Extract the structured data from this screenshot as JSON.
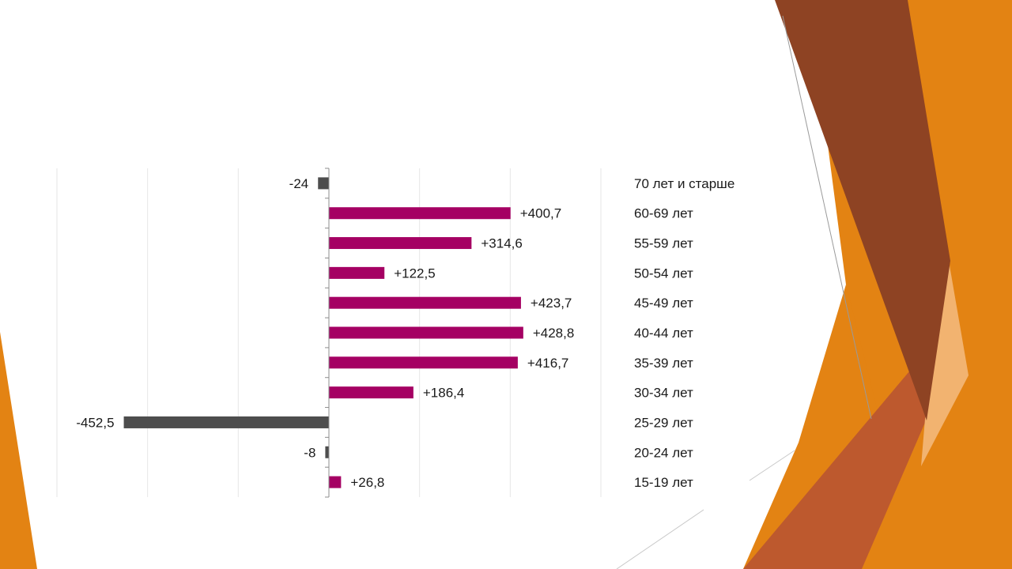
{
  "chart_data": {
    "type": "bar",
    "orientation": "horizontal",
    "categories": [
      "70 лет и старше",
      "60-69 лет",
      "55-59 лет",
      "50-54 лет",
      "45-49 лет",
      "40-44 лет",
      "35-39 лет",
      "30-34 лет",
      "25-29 лет",
      "20-24 лет",
      "15-19 лет"
    ],
    "values": [
      -24,
      400.7,
      314.6,
      122.5,
      423.7,
      428.8,
      416.7,
      186.4,
      -452.5,
      -8,
      26.8
    ],
    "value_labels": [
      "-24",
      "+400,7",
      "+314,6",
      "+122,5",
      "+423,7",
      "+428,8",
      "+416,7",
      "+186,4",
      "-452,5",
      "-8",
      "+26,8"
    ],
    "xlim": [
      -600,
      600
    ],
    "grid": true,
    "colors": {
      "positive": "#A50063",
      "negative": "#4D4D4D"
    },
    "title": "",
    "xlabel": "",
    "ylabel": ""
  },
  "decoration": {
    "orange": "#E38313",
    "brown": "#8E4323",
    "rust": "#BD592E",
    "peach": "#F2B370"
  }
}
